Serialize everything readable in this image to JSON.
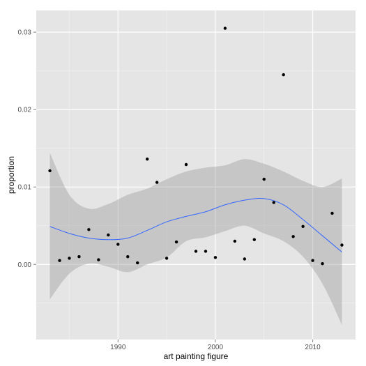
{
  "chart_data": {
    "type": "scatter",
    "title": "",
    "xlabel": "art painting figure",
    "ylabel": "proportion",
    "xlim": [
      1981.6,
      2014.4
    ],
    "ylim": [
      -0.0097,
      0.0328
    ],
    "x_ticks": [
      1990,
      2000,
      2010
    ],
    "x_tick_labels": [
      "1990",
      "2000",
      "2010"
    ],
    "y_ticks": [
      0.0,
      0.01,
      0.02,
      0.03
    ],
    "y_tick_labels": [
      "0.00",
      "0.01",
      "0.02",
      "0.03"
    ],
    "grid": true,
    "legend": "none",
    "points": [
      {
        "x": 1983,
        "y": 0.0121
      },
      {
        "x": 1984,
        "y": 0.0005
      },
      {
        "x": 1985,
        "y": 0.0008
      },
      {
        "x": 1986,
        "y": 0.001
      },
      {
        "x": 1987,
        "y": 0.0045
      },
      {
        "x": 1988,
        "y": 0.0006
      },
      {
        "x": 1989,
        "y": 0.0038
      },
      {
        "x": 1990,
        "y": 0.0026
      },
      {
        "x": 1991,
        "y": 0.001
      },
      {
        "x": 1992,
        "y": 0.0002
      },
      {
        "x": 1993,
        "y": 0.0136
      },
      {
        "x": 1994,
        "y": 0.0106
      },
      {
        "x": 1995,
        "y": 0.0008
      },
      {
        "x": 1996,
        "y": 0.0029
      },
      {
        "x": 1997,
        "y": 0.0129
      },
      {
        "x": 1998,
        "y": 0.0017
      },
      {
        "x": 1999,
        "y": 0.0017
      },
      {
        "x": 2000,
        "y": 0.0009
      },
      {
        "x": 2001,
        "y": 0.0305
      },
      {
        "x": 2002,
        "y": 0.003
      },
      {
        "x": 2003,
        "y": 0.0007
      },
      {
        "x": 2004,
        "y": 0.0032
      },
      {
        "x": 2005,
        "y": 0.011
      },
      {
        "x": 2006,
        "y": 0.008
      },
      {
        "x": 2007,
        "y": 0.0245
      },
      {
        "x": 2008,
        "y": 0.0036
      },
      {
        "x": 2009,
        "y": 0.0049
      },
      {
        "x": 2010,
        "y": 0.0005
      },
      {
        "x": 2011,
        "y": 0.0001
      },
      {
        "x": 2012,
        "y": 0.0066
      },
      {
        "x": 2013,
        "y": 0.0025
      }
    ],
    "smooth": {
      "x": [
        1983,
        1985,
        1987,
        1989,
        1991,
        1993,
        1995,
        1997,
        1999,
        2001,
        2003,
        2005,
        2007,
        2009,
        2011,
        2013
      ],
      "fit": [
        0.0049,
        0.004,
        0.0034,
        0.0032,
        0.0034,
        0.0044,
        0.0055,
        0.0062,
        0.0068,
        0.0077,
        0.0083,
        0.0085,
        0.0077,
        0.0058,
        0.0037,
        0.0016
      ],
      "lower": [
        -0.0045,
        -0.0012,
        0.0001,
        -0.0003,
        -0.001,
        0.0,
        0.0009,
        0.003,
        0.0035,
        0.0043,
        0.005,
        0.004,
        0.003,
        0.001,
        -0.0025,
        -0.0078
      ],
      "upper": [
        0.0144,
        0.009,
        0.0072,
        0.0078,
        0.009,
        0.0098,
        0.011,
        0.012,
        0.0125,
        0.0128,
        0.0136,
        0.013,
        0.012,
        0.0108,
        0.01,
        0.0111
      ]
    },
    "colors": {
      "panel_bg": "#e5e5e5",
      "grid_major": "#ffffff",
      "grid_minor": "#f2f2f2",
      "ribbon": "#999999",
      "line": "#3366ff",
      "point": "#000000"
    }
  }
}
